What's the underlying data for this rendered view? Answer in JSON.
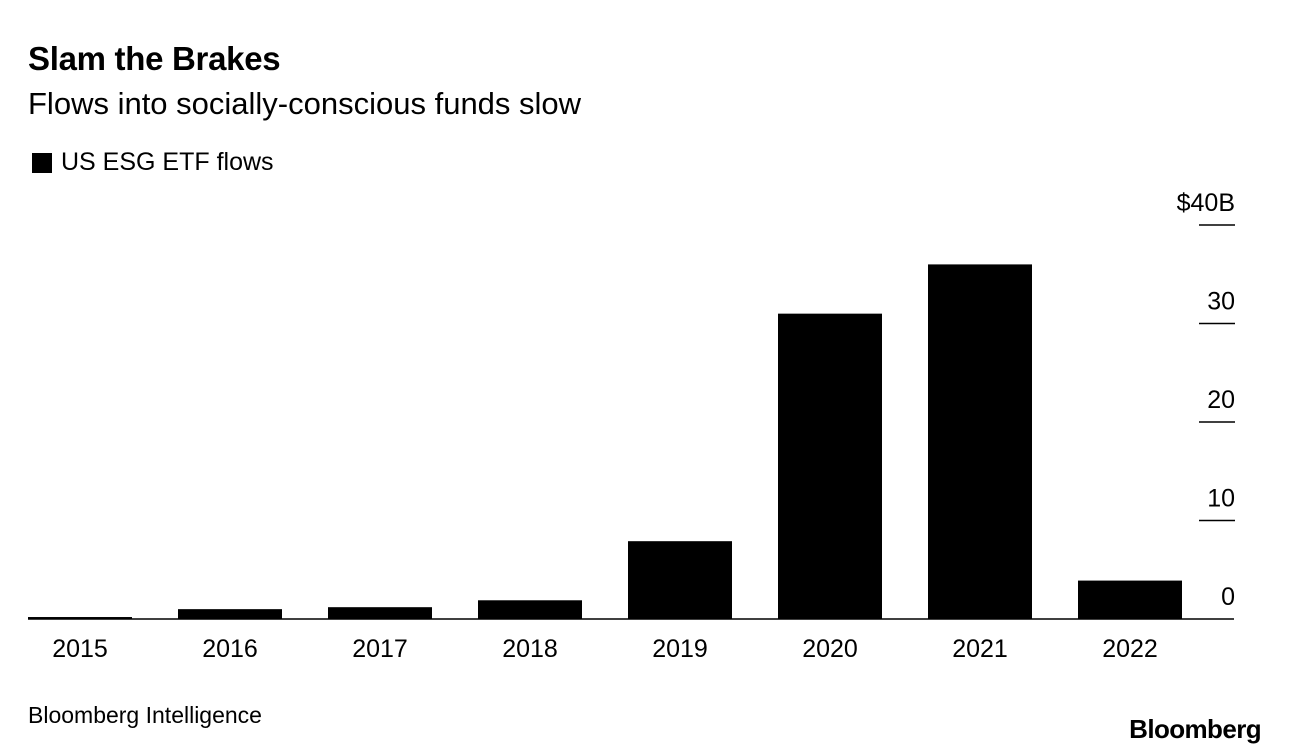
{
  "header": {
    "title": "Slam the Brakes",
    "subtitle": "Flows into socially-conscious funds slow"
  },
  "legend": {
    "label": "US ESG ETF flows",
    "color": "#000000"
  },
  "chart_data": {
    "type": "bar",
    "title": "Slam the Brakes",
    "subtitle": "Flows into socially-conscious funds slow",
    "categories": [
      "2015",
      "2016",
      "2017",
      "2018",
      "2019",
      "2020",
      "2021",
      "2022"
    ],
    "series": [
      {
        "name": "US ESG ETF flows",
        "values": [
          0.2,
          1.0,
          1.2,
          1.9,
          7.9,
          31.0,
          36.0,
          3.9
        ],
        "color": "#000000"
      }
    ],
    "y_axis": {
      "min": 0,
      "max": 40,
      "ticks": [
        0,
        10,
        20,
        30,
        40
      ],
      "tick_labels": [
        "0",
        "10",
        "20",
        "30",
        "$40B"
      ],
      "position": "right"
    },
    "xlabel": "",
    "ylabel": "",
    "grid": false
  },
  "footer": {
    "source": "Bloomberg Intelligence",
    "logo_text": "Bloomberg"
  }
}
